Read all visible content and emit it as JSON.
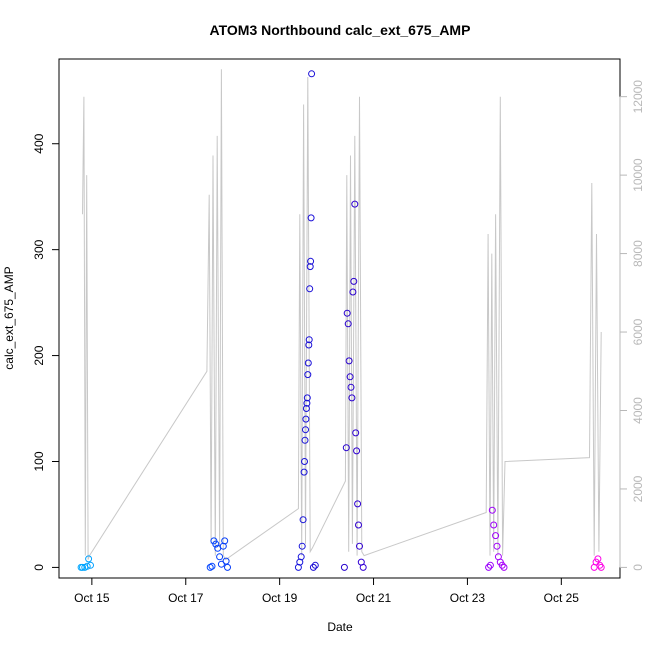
{
  "chart_data": {
    "type": "scatter",
    "title": "ATOM3 Northbound calc_ext_675_AMP",
    "xlabel": "Date",
    "ylabel": "calc_ext_675_AMP",
    "x_ticks": [
      "Oct 15",
      "Oct 17",
      "Oct 19",
      "Oct 21",
      "Oct 23",
      "Oct 25"
    ],
    "x_tick_values": [
      15,
      17,
      19,
      21,
      23,
      25
    ],
    "xlim": [
      14.3,
      26.25
    ],
    "ylim": [
      -10,
      480
    ],
    "y_ticks": [
      0,
      100,
      200,
      300,
      400
    ],
    "y2_ticks": [
      0,
      2000,
      4000,
      6000,
      8000,
      10000,
      12000
    ],
    "y2lim": [
      -270,
      12960
    ],
    "grid": false,
    "series": [
      {
        "kind": "points",
        "color_ramp": [
          "#00a8ff",
          "#0044ff",
          "#2200cc",
          "#8a00ff",
          "#ff00e6"
        ],
        "x_range": [
          14.75,
          25.85
        ],
        "points": [
          [
            14.77,
            0
          ],
          [
            14.8,
            0
          ],
          [
            14.85,
            0
          ],
          [
            14.9,
            1
          ],
          [
            14.93,
            8
          ],
          [
            14.97,
            2
          ],
          [
            17.52,
            0
          ],
          [
            17.56,
            1
          ],
          [
            17.6,
            25
          ],
          [
            17.64,
            22
          ],
          [
            17.68,
            18
          ],
          [
            17.72,
            10
          ],
          [
            17.76,
            3
          ],
          [
            17.8,
            20
          ],
          [
            17.83,
            25
          ],
          [
            17.86,
            6
          ],
          [
            17.89,
            0
          ],
          [
            19.4,
            0
          ],
          [
            19.43,
            5
          ],
          [
            19.46,
            10
          ],
          [
            19.48,
            20
          ],
          [
            19.5,
            45
          ],
          [
            19.52,
            90
          ],
          [
            19.53,
            100
          ],
          [
            19.54,
            120
          ],
          [
            19.55,
            130
          ],
          [
            19.56,
            140
          ],
          [
            19.57,
            150
          ],
          [
            19.58,
            155
          ],
          [
            19.59,
            160
          ],
          [
            19.6,
            182
          ],
          [
            19.61,
            193
          ],
          [
            19.62,
            210
          ],
          [
            19.63,
            215
          ],
          [
            19.64,
            263
          ],
          [
            19.65,
            284
          ],
          [
            19.66,
            289
          ],
          [
            19.67,
            330
          ],
          [
            19.68,
            466
          ],
          [
            19.72,
            0
          ],
          [
            19.76,
            2
          ],
          [
            20.38,
            0
          ],
          [
            20.42,
            113
          ],
          [
            20.44,
            240
          ],
          [
            20.46,
            230
          ],
          [
            20.48,
            195
          ],
          [
            20.5,
            180
          ],
          [
            20.52,
            170
          ],
          [
            20.54,
            160
          ],
          [
            20.56,
            260
          ],
          [
            20.58,
            270
          ],
          [
            20.6,
            343
          ],
          [
            20.62,
            127
          ],
          [
            20.64,
            110
          ],
          [
            20.66,
            60
          ],
          [
            20.68,
            40
          ],
          [
            20.7,
            20
          ],
          [
            20.74,
            5
          ],
          [
            20.78,
            0
          ],
          [
            23.45,
            0
          ],
          [
            23.49,
            2
          ],
          [
            23.53,
            54
          ],
          [
            23.56,
            40
          ],
          [
            23.6,
            30
          ],
          [
            23.63,
            20
          ],
          [
            23.66,
            10
          ],
          [
            23.7,
            5
          ],
          [
            23.74,
            2
          ],
          [
            23.78,
            0
          ],
          [
            25.7,
            0
          ],
          [
            25.74,
            5
          ],
          [
            25.78,
            8
          ],
          [
            25.82,
            2
          ],
          [
            25.85,
            0
          ]
        ]
      },
      {
        "kind": "line",
        "axis": "right",
        "color": "#c8c8c8",
        "x": [
          14.8,
          14.83,
          14.86,
          14.89,
          14.92,
          14.95,
          17.45,
          17.5,
          17.54,
          17.58,
          17.63,
          17.67,
          17.72,
          17.76,
          17.8,
          17.85,
          19.4,
          19.43,
          19.47,
          19.51,
          19.55,
          19.6,
          19.65,
          19.7,
          20.4,
          20.43,
          20.47,
          20.51,
          20.55,
          20.6,
          20.65,
          20.7,
          20.75,
          20.8,
          23.4,
          23.44,
          23.48,
          23.52,
          23.56,
          23.6,
          23.65,
          23.7,
          23.75,
          23.8,
          25.6,
          25.65,
          25.7,
          25.75,
          25.8,
          25.85
        ],
        "y": [
          9000,
          12000,
          300,
          10000,
          200,
          300,
          5000,
          9500,
          600,
          10500,
          300,
          11000,
          500,
          12700,
          300,
          200,
          1500,
          9000,
          300,
          11800,
          600,
          12500,
          400,
          500,
          2200,
          10000,
          400,
          10500,
          600,
          11000,
          300,
          12000,
          400,
          300,
          1400,
          8500,
          300,
          8000,
          400,
          9000,
          300,
          12000,
          300,
          2700,
          2800,
          9800,
          300,
          8500,
          400,
          6000
        ]
      }
    ]
  }
}
